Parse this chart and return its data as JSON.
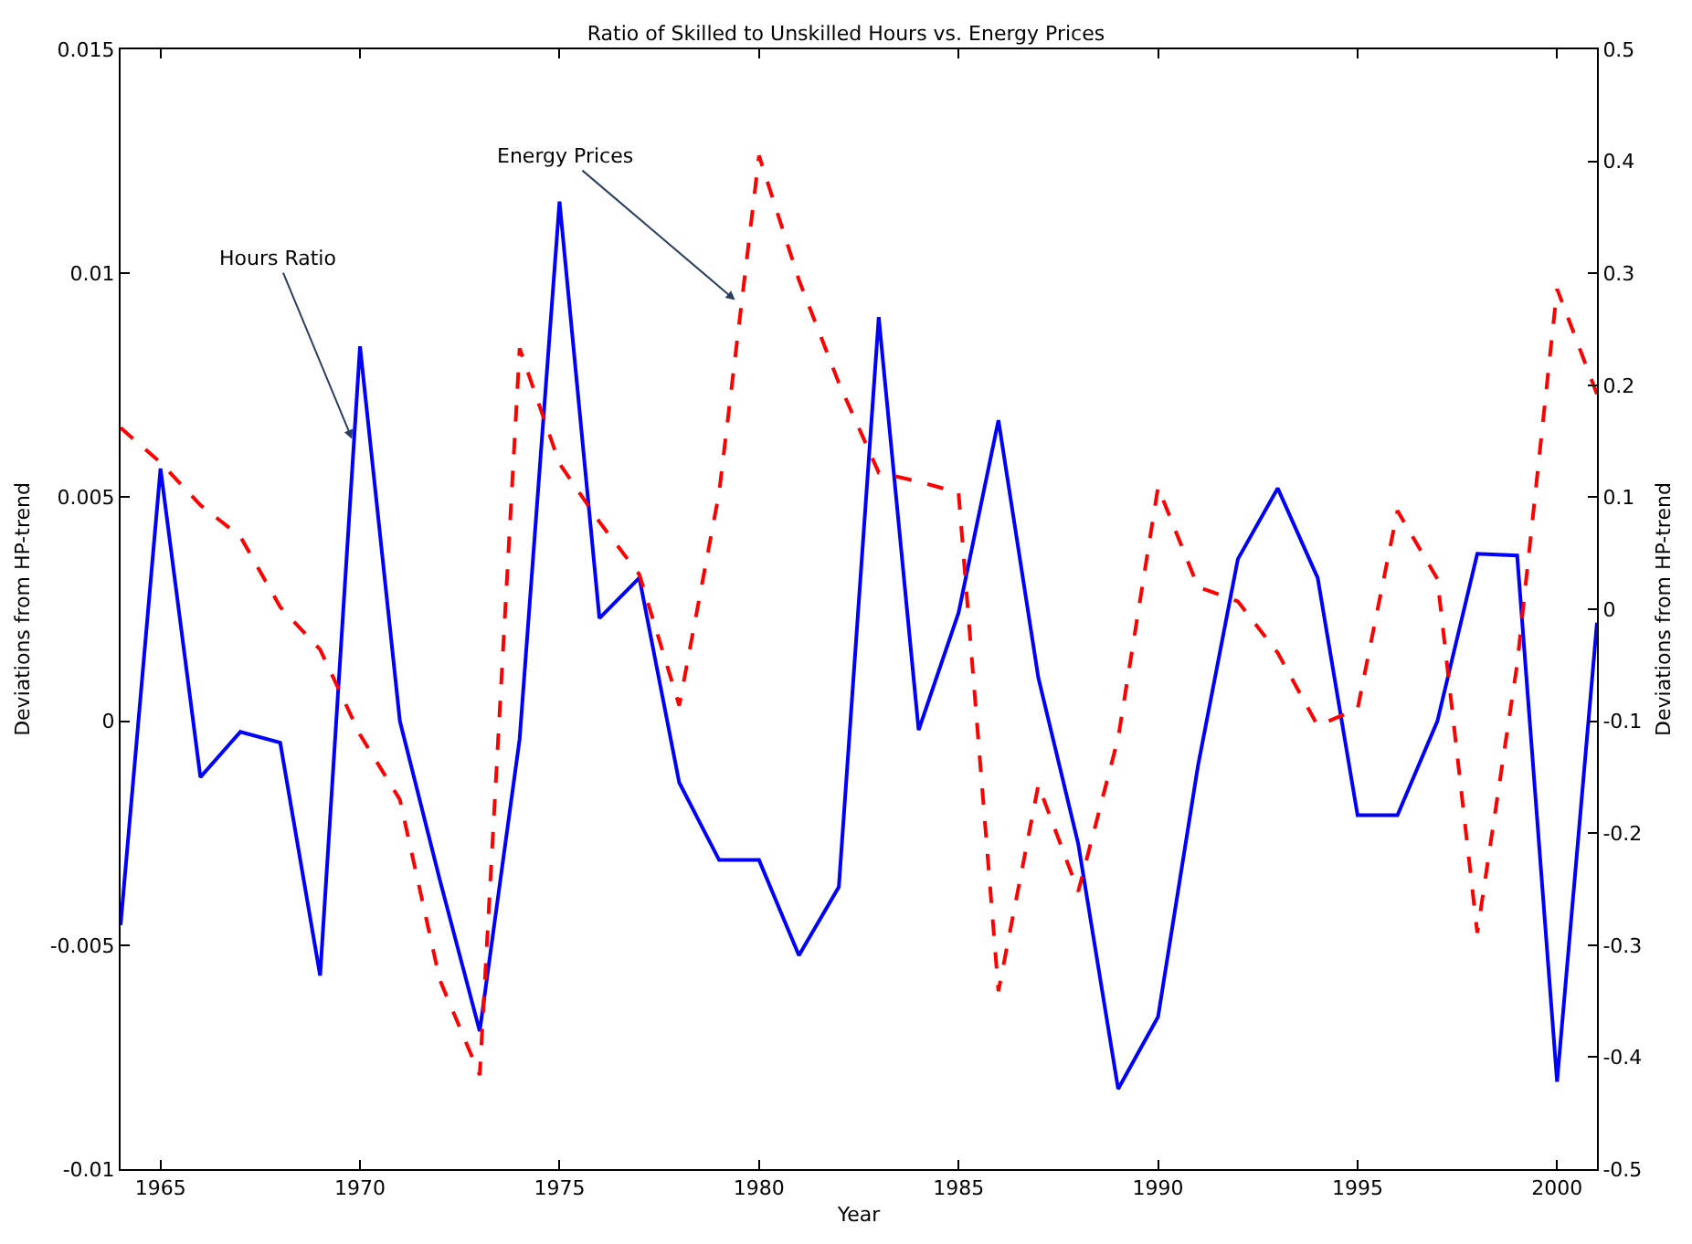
{
  "chart_data": {
    "type": "line",
    "title": "Ratio of Skilled to Unskilled Hours vs. Energy Prices",
    "xlabel": "Year",
    "ylabel": "Deviations from HP-trend",
    "y2label": "Deviations from HP-trend",
    "x": [
      1964,
      1965,
      1966,
      1967,
      1968,
      1969,
      1970,
      1971,
      1972,
      1973,
      1974,
      1975,
      1976,
      1977,
      1978,
      1979,
      1980,
      1981,
      1982,
      1983,
      1984,
      1985,
      1986,
      1987,
      1988,
      1989,
      1990,
      1991,
      1992,
      1993,
      1994,
      1995,
      1996,
      1997,
      1998,
      1999,
      2000,
      2001
    ],
    "series": [
      {
        "color": "#0000ff",
        "line_style": "solid",
        "values": [
          -0.00455,
          0.00564,
          -0.00125,
          -0.00024,
          -0.00048,
          -0.00568,
          0.00837,
          0.0,
          -0.00354,
          -0.00692,
          -0.0004,
          0.0116,
          0.0023,
          0.0032,
          -0.00137,
          -0.0031,
          -0.0031,
          -0.00523,
          -0.0037,
          0.00902,
          -0.0002,
          0.00242,
          0.00672,
          0.00097,
          -0.00274,
          -0.00821,
          -0.0066,
          -0.001,
          0.00362,
          0.0052,
          0.0032,
          -0.0021,
          -0.0021,
          0.0,
          0.00374,
          0.0037,
          -0.00805,
          0.0022
        ]
      },
      {
        "color": "#ff0000",
        "line_style": "dashed",
        "axis": "y2",
        "values": [
          0.162,
          0.131,
          0.093,
          0.065,
          0.002,
          -0.036,
          -0.112,
          -0.17,
          -0.331,
          -0.416,
          0.233,
          0.13,
          0.078,
          0.031,
          -0.086,
          0.104,
          0.405,
          0.294,
          0.202,
          0.122,
          0.114,
          0.104,
          -0.341,
          -0.157,
          -0.252,
          -0.115,
          0.109,
          0.02,
          0.007,
          -0.039,
          -0.104,
          -0.089,
          0.088,
          0.027,
          -0.289,
          -0.049,
          0.286,
          0.192
        ]
      }
    ],
    "annotations": [
      {
        "text": "Hours Ratio",
        "x": 1969.8,
        "y": 0.0063
      },
      {
        "text": "Energy Prices",
        "x": 1979.4,
        "y": 0.0094
      }
    ],
    "xlim": [
      1964,
      2001
    ],
    "xticks": [
      1965,
      1970,
      1975,
      1980,
      1985,
      1990,
      1995,
      2000
    ],
    "ylim": [
      -0.01,
      0.015
    ],
    "yticks": [
      -0.01,
      -0.005,
      0,
      0.005,
      0.01,
      0.015
    ],
    "y2lim": [
      -0.5,
      0.5
    ],
    "y2ticks": [
      -0.5,
      -0.4,
      -0.3,
      -0.2,
      -0.1,
      0,
      0.1,
      0.2,
      0.3,
      0.4,
      0.5
    ],
    "marker": "none"
  }
}
